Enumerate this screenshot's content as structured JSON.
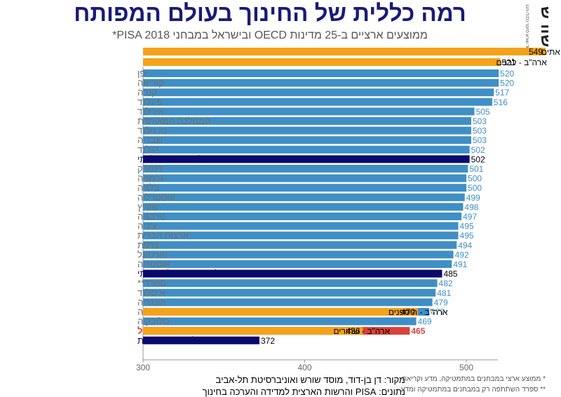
{
  "title": "רמה כללית של החינוך בעולם המפותח",
  "subtitle": "ממוצעים ארציים ב-25 מדינות OECD ובישראל במבחני PISA 2018*",
  "logo": {
    "text": "שורש",
    "subtext": "מוסד שורש לחקר כלכלי-חברתי"
  },
  "notes": {
    "note1": "* ממוצע ארצי במבחנים במתמטיקה, מדע וקריאה",
    "note2": "** ספרד השתתפה רק במבחנים במתמטיקה ומדע"
  },
  "source": {
    "line1": "מקור:  דן בן-דוד, מוסד שורש ואוניברסיטת תל-אביב",
    "line2": "נתונים: PISA והרשות הארצית למדידה והערכה בחינוך"
  },
  "colors": {
    "country": "#3f8fc6",
    "israel_sub": "#0a0a6e",
    "israel": "#d9413a",
    "us_sub": "#f5a21b",
    "label_gray": "#6f6f6f",
    "label_navy": "#0a0a6e",
    "label_red": "#d9413a"
  },
  "chart_data": {
    "type": "bar",
    "orientation": "horizontal",
    "xlim": [
      300,
      549
    ],
    "xticks": [
      300,
      400,
      500
    ],
    "categories": [
      {
        "label": "יפן",
        "value": 520,
        "kind": "country"
      },
      {
        "label": "קוריאה",
        "value": 520,
        "kind": "country"
      },
      {
        "label": "קנדה",
        "value": 517,
        "kind": "country"
      },
      {
        "label": "פינלנד",
        "value": 516,
        "kind": "country"
      },
      {
        "label": "אירלנד",
        "value": 505,
        "kind": "country"
      },
      {
        "label": "הממלכה המאוחדת",
        "value": 503,
        "kind": "country"
      },
      {
        "label": "ניו זילנד",
        "value": 503,
        "kind": "country"
      },
      {
        "label": "שבדיה",
        "value": 503,
        "kind": "country"
      },
      {
        "label": "הולנד",
        "value": 502,
        "kind": "country"
      },
      {
        "label": "ישראל – יהודי ממלכתי",
        "value": 502,
        "kind": "israel_sub"
      },
      {
        "label": "דנמרק",
        "value": 501,
        "kind": "country"
      },
      {
        "label": "גרמניה",
        "value": 500,
        "kind": "country"
      },
      {
        "label": "בלגיה",
        "value": 500,
        "kind": "country"
      },
      {
        "label": "אוסטרליה",
        "value": 499,
        "kind": "country"
      },
      {
        "label": "שווייץ",
        "value": 498,
        "kind": "country"
      },
      {
        "label": "נורבגיה",
        "value": 497,
        "kind": "country"
      },
      {
        "label": "צ'כיה",
        "value": 495,
        "kind": "country"
      },
      {
        "label": "ארצות הברית",
        "value": 495,
        "kind": "country"
      },
      {
        "label": "צרפת",
        "value": 494,
        "kind": "country"
      },
      {
        "label": "פורטוגל",
        "value": 492,
        "kind": "country"
      },
      {
        "label": "אוסטריה",
        "value": 491,
        "kind": "country"
      },
      {
        "label": "ישראל – יהודי ממלכתי-דתי",
        "value": 485,
        "kind": "israel_sub"
      },
      {
        "label": "ספרד**",
        "value": 482,
        "kind": "country"
      },
      {
        "label": "איסלנד",
        "value": 481,
        "kind": "country"
      },
      {
        "label": "הונגריה",
        "value": 479,
        "kind": "country"
      },
      {
        "label": "איטליה",
        "value": 477,
        "kind": "country"
      },
      {
        "label": "סלובקיה",
        "value": 469,
        "kind": "country"
      },
      {
        "label": "ישראל",
        "value": 465,
        "kind": "israel"
      },
      {
        "label": "ישראל - דוברי ערבית",
        "value": 372,
        "kind": "israel_sub"
      }
    ],
    "us_subgroups": [
      {
        "label": "ארה\"ב - אסיאתים",
        "value": 549,
        "row": "top1"
      },
      {
        "label": "ארה\"ב - לבנים",
        "value": 521,
        "row": "top2"
      },
      {
        "label": "ארה\"ב - היספנים",
        "value": 470,
        "row": 25
      },
      {
        "label": "ארה\"ב - שחורים",
        "value": 436,
        "row": 27
      }
    ]
  }
}
